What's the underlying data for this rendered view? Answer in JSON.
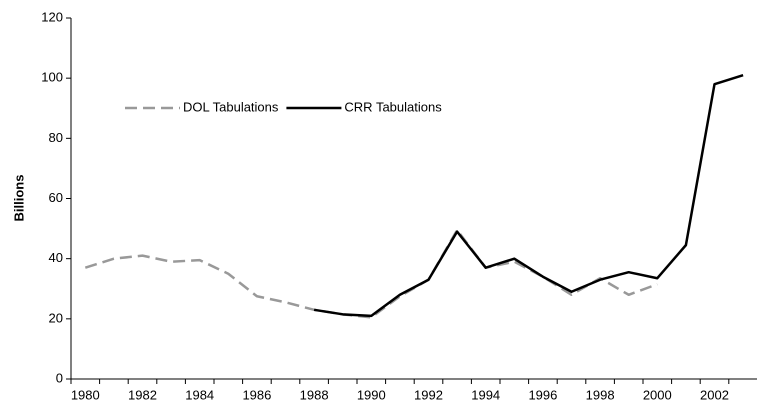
{
  "chart_data": {
    "type": "line",
    "y_label": "Billions",
    "categories": [
      "1980",
      null,
      "1982",
      null,
      "1984",
      null,
      "1986",
      null,
      "1988",
      null,
      "1990",
      null,
      "1992",
      null,
      "1994",
      null,
      "1996",
      null,
      "1998",
      null,
      "2000",
      null,
      "2002",
      null
    ],
    "series": [
      {
        "name": "DOL Tabulations",
        "color": "#999999",
        "dashed": true,
        "values": [
          37,
          40,
          41,
          39,
          39.5,
          35,
          27.5,
          25.5,
          23,
          21.5,
          20.5,
          27.5,
          33,
          49.5,
          37,
          39,
          34,
          28,
          33.5,
          28,
          31.5,
          null,
          null,
          null
        ]
      },
      {
        "name": "CRR Tabulations",
        "color": "#000000",
        "dashed": false,
        "values": [
          null,
          null,
          null,
          null,
          null,
          null,
          null,
          null,
          23,
          21.5,
          21,
          28,
          33,
          49,
          37,
          40,
          34,
          29,
          33,
          35.5,
          33.5,
          44.5,
          98,
          101
        ]
      }
    ],
    "ylim": [
      0,
      120
    ],
    "yticks": [
      0,
      20,
      40,
      60,
      80,
      100,
      120
    ],
    "grid": false,
    "legend": "upper left"
  }
}
